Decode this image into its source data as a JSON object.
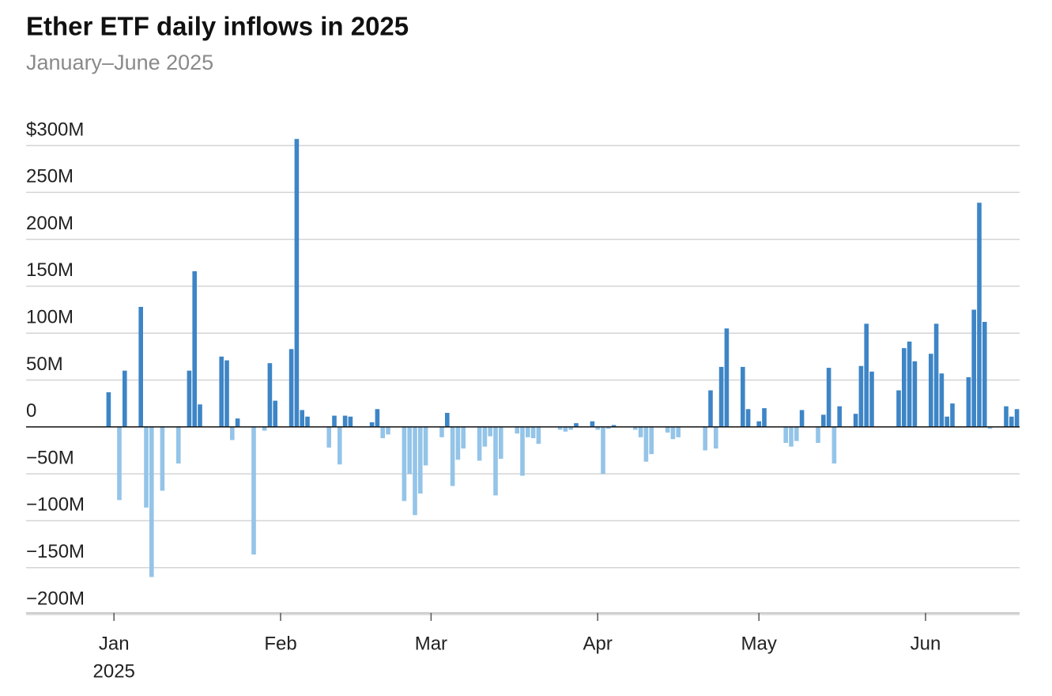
{
  "chart_data": {
    "type": "bar",
    "title": "Ether ETF daily inflows in 2025",
    "subtitle": "January–June 2025",
    "year_label": "2025",
    "categories": [
      null,
      null,
      null,
      null,
      null,
      null,
      null,
      null,
      null,
      null,
      null,
      null,
      null,
      null,
      null,
      null,
      "Jan",
      null,
      null,
      null,
      null,
      null,
      null,
      null,
      null,
      null,
      null,
      null,
      null,
      null,
      null,
      null,
      null,
      null,
      null,
      null,
      null,
      null,
      null,
      null,
      null,
      null,
      null,
      null,
      null,
      null,
      null,
      "Feb",
      null,
      null,
      null,
      null,
      null,
      null,
      null,
      null,
      null,
      null,
      null,
      null,
      null,
      null,
      null,
      null,
      null,
      null,
      null,
      null,
      null,
      null,
      null,
      null,
      null,
      null,
      null,
      "Mar",
      null,
      null,
      null,
      null,
      null,
      null,
      null,
      null,
      null,
      null,
      null,
      null,
      null,
      null,
      null,
      null,
      null,
      null,
      null,
      null,
      null,
      null,
      null,
      null,
      null,
      null,
      null,
      null,
      null,
      null,
      "Apr",
      null,
      null,
      null,
      null,
      null,
      null,
      null,
      null,
      null,
      null,
      null,
      null,
      null,
      null,
      null,
      null,
      null,
      null,
      null,
      null,
      null,
      null,
      null,
      null,
      null,
      null,
      null,
      null,
      null,
      "May",
      null,
      null,
      null,
      null,
      null,
      null,
      null,
      null,
      null,
      null,
      null,
      null,
      null,
      null,
      null,
      null,
      null,
      null,
      null,
      null,
      null,
      null,
      null,
      null,
      null,
      null,
      null,
      null,
      null,
      null,
      "Jun",
      null,
      null,
      null,
      null,
      null,
      null,
      null,
      null,
      null,
      null,
      null,
      null,
      null,
      null,
      null,
      null,
      null,
      null
    ],
    "values": [
      null,
      null,
      null,
      null,
      null,
      null,
      null,
      null,
      null,
      null,
      null,
      null,
      null,
      null,
      null,
      37,
      null,
      -78,
      60,
      null,
      null,
      128,
      -86,
      -160,
      null,
      -68,
      null,
      null,
      -39,
      null,
      60,
      166,
      24,
      null,
      null,
      null,
      75,
      71,
      -14,
      9,
      null,
      null,
      -136,
      null,
      -4,
      68,
      28,
      null,
      null,
      83,
      307,
      18,
      11,
      null,
      null,
      null,
      -22,
      12,
      -40,
      12,
      11,
      null,
      null,
      null,
      5,
      19,
      -12,
      -8,
      null,
      null,
      -79,
      -50,
      -94,
      -71,
      -41,
      null,
      null,
      -11,
      15,
      -63,
      -35,
      -23,
      null,
      null,
      -36,
      -21,
      -10,
      -73,
      -34,
      null,
      null,
      -7,
      -52,
      -11,
      -12,
      -18,
      null,
      null,
      null,
      -3,
      -5,
      -3,
      4,
      null,
      null,
      6,
      -3,
      -50,
      -2,
      2,
      null,
      null,
      null,
      -3,
      -11,
      -37,
      -29,
      null,
      null,
      -6,
      -13,
      -11,
      null,
      null,
      null,
      null,
      -25,
      39,
      -23,
      64,
      105,
      null,
      null,
      64,
      19,
      null,
      6,
      20,
      null,
      null,
      null,
      -17,
      -21,
      -15,
      18,
      null,
      null,
      -17,
      13,
      63,
      -39,
      22,
      null,
      null,
      14,
      65,
      110,
      59,
      null,
      null,
      null,
      null,
      39,
      84,
      91,
      70,
      null,
      null,
      78,
      110,
      57,
      11,
      25,
      null,
      null,
      53,
      125,
      239,
      112,
      -2,
      null,
      null,
      22,
      11,
      19,
      null
    ],
    "positive_color": "#3d85c6",
    "negative_color": "#94c4e8",
    "ylim": [
      -200,
      300
    ],
    "yticks": [
      {
        "value": -200,
        "label": "−200M"
      },
      {
        "value": -150,
        "label": "−150M"
      },
      {
        "value": -100,
        "label": "−100M"
      },
      {
        "value": -50,
        "label": "−50M"
      },
      0,
      {
        "value": 50,
        "label": "50M"
      },
      {
        "value": 100,
        "label": "100M"
      },
      {
        "value": 150,
        "label": "150M"
      },
      {
        "value": 200,
        "label": "200M"
      },
      {
        "value": 250,
        "label": "250M"
      },
      {
        "value": 300,
        "label": "$300M"
      }
    ],
    "grid": true
  }
}
